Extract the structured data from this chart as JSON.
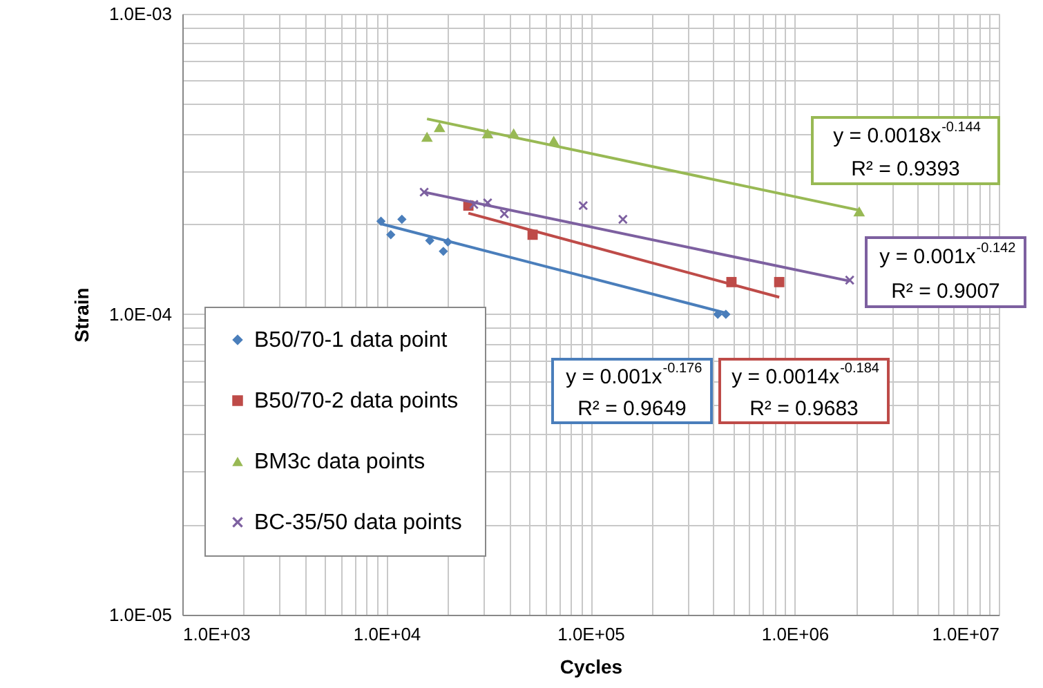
{
  "chart_data": {
    "type": "scatter",
    "xlabel": "Cycles",
    "ylabel": "Strain",
    "log": "xy",
    "grid": true,
    "legend": "bottom left",
    "xlim": [
      1000,
      10000000
    ],
    "ylim": [
      1e-05,
      0.001
    ],
    "xticks": [
      {
        "value": 1000,
        "label": "1.0E+03"
      },
      {
        "value": 2000,
        "label": null
      },
      {
        "value": 3000,
        "label": null
      },
      {
        "value": 4000,
        "label": null
      },
      {
        "value": 5000,
        "label": null
      },
      {
        "value": 6000,
        "label": null
      },
      {
        "value": 7000,
        "label": null
      },
      {
        "value": 8000,
        "label": null
      },
      {
        "value": 9000,
        "label": null
      },
      {
        "value": 10000,
        "label": "1.0E+04"
      },
      {
        "value": 20000,
        "label": null
      },
      {
        "value": 30000,
        "label": null
      },
      {
        "value": 40000,
        "label": null
      },
      {
        "value": 50000,
        "label": null
      },
      {
        "value": 60000,
        "label": null
      },
      {
        "value": 70000,
        "label": null
      },
      {
        "value": 80000,
        "label": null
      },
      {
        "value": 90000,
        "label": null
      },
      {
        "value": 100000,
        "label": "1.0E+05"
      },
      {
        "value": 200000,
        "label": null
      },
      {
        "value": 300000,
        "label": null
      },
      {
        "value": 400000,
        "label": null
      },
      {
        "value": 500000,
        "label": null
      },
      {
        "value": 600000,
        "label": null
      },
      {
        "value": 700000,
        "label": null
      },
      {
        "value": 800000,
        "label": null
      },
      {
        "value": 900000,
        "label": null
      },
      {
        "value": 1000000,
        "label": "1.0E+06"
      },
      {
        "value": 2000000,
        "label": null
      },
      {
        "value": 3000000,
        "label": null
      },
      {
        "value": 4000000,
        "label": null
      },
      {
        "value": 5000000,
        "label": null
      },
      {
        "value": 6000000,
        "label": null
      },
      {
        "value": 7000000,
        "label": null
      },
      {
        "value": 8000000,
        "label": null
      },
      {
        "value": 9000000,
        "label": null
      },
      {
        "value": 10000000,
        "label": "1.0E+07"
      }
    ],
    "yticks": [
      {
        "value": 1e-05,
        "label": "1.0E-05"
      },
      {
        "value": 2e-05,
        "label": null
      },
      {
        "value": 3e-05,
        "label": null
      },
      {
        "value": 4e-05,
        "label": null
      },
      {
        "value": 5e-05,
        "label": null
      },
      {
        "value": 6e-05,
        "label": null
      },
      {
        "value": 7e-05,
        "label": null
      },
      {
        "value": 8e-05,
        "label": null
      },
      {
        "value": 9e-05,
        "label": null
      },
      {
        "value": 0.0001,
        "label": "1.0E-04"
      },
      {
        "value": 0.0002,
        "label": null
      },
      {
        "value": 0.0003,
        "label": null
      },
      {
        "value": 0.0004,
        "label": null
      },
      {
        "value": 0.0005,
        "label": null
      },
      {
        "value": 0.0006,
        "label": null
      },
      {
        "value": 0.0007,
        "label": null
      },
      {
        "value": 0.0008,
        "label": null
      },
      {
        "value": 0.0009,
        "label": null
      },
      {
        "value": 0.001,
        "label": "1.0E-03"
      }
    ],
    "series": [
      {
        "name": "B50/70-1 data point",
        "marker": "diamond",
        "color": "#4a7ebb",
        "x": [
          9400,
          10500,
          11900,
          16300,
          19000,
          20000,
          420000,
          460000
        ],
        "values": [
          0.000204,
          0.000184,
          0.000207,
          0.000176,
          0.000162,
          0.000174,
          0.0001,
          0.0001
        ]
      },
      {
        "name": "B50/70-2 data points",
        "marker": "square",
        "color": "#be4b48",
        "x": [
          25200,
          52000,
          490000,
          840000
        ],
        "values": [
          0.00023,
          0.000184,
          0.000128,
          0.000128
        ]
      },
      {
        "name": "BM3c data points",
        "marker": "triangle",
        "color": "#98b954",
        "x": [
          15800,
          18200,
          31300,
          42000,
          66000,
          2070000
        ],
        "values": [
          0.00039,
          0.00042,
          0.0004,
          0.0004,
          0.000378,
          0.00022
        ]
      },
      {
        "name": "BC-35/50 data points",
        "marker": "cross",
        "color": "#7d60a0",
        "x": [
          15300,
          26800,
          31300,
          37800,
          92000,
          144000,
          1860000
        ],
        "values": [
          0.000255,
          0.000232,
          0.000235,
          0.000216,
          0.00023,
          0.000207,
          0.00013
        ]
      },
      {
        "type": "line",
        "color": "#4a7ebb",
        "x": [
          9400,
          460000
        ],
        "values": [
          0.0002,
          0.000101
        ]
      },
      {
        "type": "line",
        "color": "#be4b48",
        "x": [
          25200,
          840000
        ],
        "values": [
          0.000217,
          0.000114
        ]
      },
      {
        "type": "line",
        "color": "#98b954",
        "x": [
          15800,
          2070000
        ],
        "values": [
          0.000447,
          0.000222
        ]
      },
      {
        "type": "line",
        "color": "#7d60a0",
        "x": [
          15300,
          1860000
        ],
        "values": [
          0.000255,
          0.000129
        ]
      }
    ],
    "annotations": [
      "y = 0.001x$^{-0.176}$\nR² = 0.9649",
      "y = 0.0014x$^{-0.184}$\nR² = 0.9683",
      "y = 0.0018x$^{-0.144}$\nR² = 0.9393",
      "y = 0.001x$^{-0.142}$\nR² = 0.9007"
    ]
  }
}
